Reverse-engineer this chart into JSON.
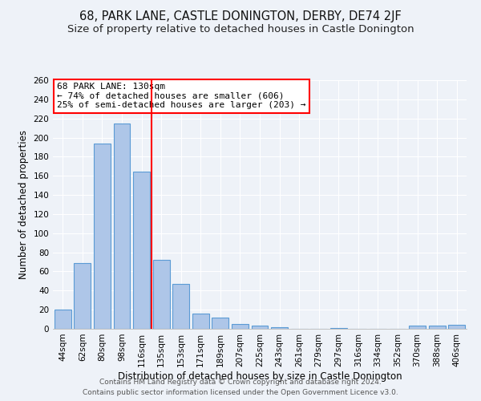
{
  "title": "68, PARK LANE, CASTLE DONINGTON, DERBY, DE74 2JF",
  "subtitle": "Size of property relative to detached houses in Castle Donington",
  "xlabel": "Distribution of detached houses by size in Castle Donington",
  "ylabel": "Number of detached properties",
  "footer_line1": "Contains HM Land Registry data © Crown copyright and database right 2024.",
  "footer_line2": "Contains public sector information licensed under the Open Government Licence v3.0.",
  "bar_categories": [
    "44sqm",
    "62sqm",
    "80sqm",
    "98sqm",
    "116sqm",
    "135sqm",
    "153sqm",
    "171sqm",
    "189sqm",
    "207sqm",
    "225sqm",
    "243sqm",
    "261sqm",
    "279sqm",
    "297sqm",
    "316sqm",
    "334sqm",
    "352sqm",
    "370sqm",
    "388sqm",
    "406sqm"
  ],
  "bar_values": [
    20,
    69,
    194,
    215,
    164,
    72,
    47,
    16,
    12,
    5,
    3,
    2,
    0,
    0,
    1,
    0,
    0,
    0,
    3,
    3,
    4
  ],
  "bar_color": "#aec6e8",
  "bar_edge_color": "#5b9bd5",
  "vline_x": 4.5,
  "vline_color": "red",
  "annotation_title": "68 PARK LANE: 130sqm",
  "annotation_line2": "← 74% of detached houses are smaller (606)",
  "annotation_line3": "25% of semi-detached houses are larger (203) →",
  "ylim": [
    0,
    260
  ],
  "yticks": [
    0,
    20,
    40,
    60,
    80,
    100,
    120,
    140,
    160,
    180,
    200,
    220,
    240,
    260
  ],
  "background_color": "#eef2f8",
  "grid_color": "#ffffff",
  "title_fontsize": 10.5,
  "subtitle_fontsize": 9.5,
  "axis_label_fontsize": 8.5,
  "tick_fontsize": 7.5,
  "footer_fontsize": 6.5
}
